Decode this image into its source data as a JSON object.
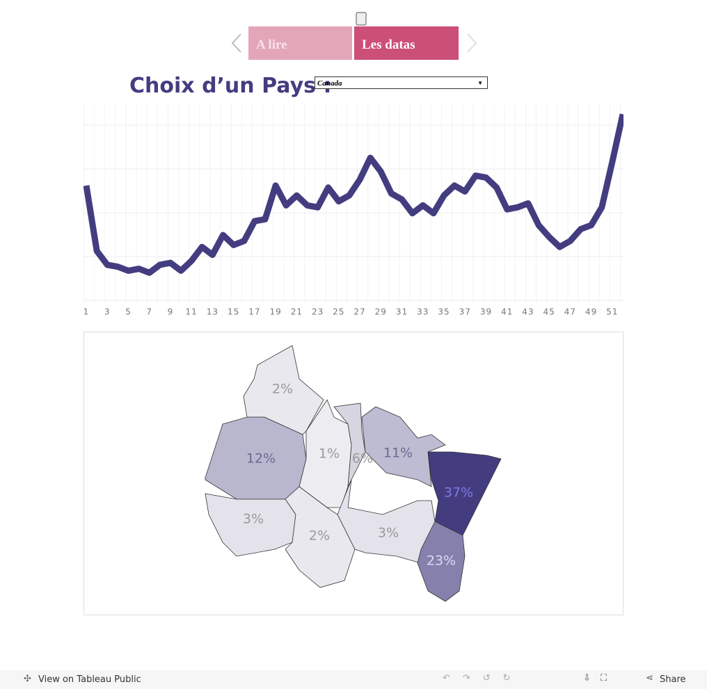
{
  "nav": {
    "tabs": [
      "A  lire",
      "Les  datas"
    ]
  },
  "filter": {
    "label": "Choix d’un Pays :",
    "selected": "Canada"
  },
  "chart_data": {
    "type": "line",
    "x": [
      1,
      2,
      3,
      4,
      5,
      6,
      7,
      8,
      9,
      10,
      11,
      12,
      13,
      14,
      15,
      16,
      17,
      18,
      19,
      20,
      21,
      22,
      23,
      24,
      25,
      26,
      27,
      28,
      29,
      30,
      31,
      32,
      33,
      34,
      35,
      36,
      37,
      38,
      39,
      40,
      41,
      42,
      43,
      44,
      45,
      46,
      47,
      48,
      49,
      50,
      51,
      52
    ],
    "values": [
      59,
      26,
      19,
      18,
      16,
      17,
      15,
      19,
      20,
      16,
      21,
      28,
      24,
      34,
      29,
      31,
      41,
      42,
      59,
      49,
      54,
      49,
      48,
      58,
      51,
      54,
      62,
      73,
      66,
      55,
      52,
      45,
      49,
      45,
      54,
      59,
      56,
      64,
      63,
      58,
      47,
      48,
      50,
      39,
      33,
      28,
      31,
      37,
      39,
      48,
      71,
      95
    ],
    "color": "#433d80",
    "xlim": [
      1,
      52
    ],
    "ylim": [
      0,
      100
    ],
    "xticks": [
      1,
      3,
      5,
      7,
      9,
      11,
      13,
      15,
      17,
      19,
      21,
      23,
      25,
      27,
      29,
      31,
      33,
      35,
      37,
      39,
      41,
      43,
      45,
      47,
      49,
      51
    ]
  },
  "map": {
    "values": [
      2,
      12,
      1,
      6,
      11,
      37,
      3,
      2,
      3,
      23
    ],
    "value_labels": [
      "2%",
      "12%",
      "1%",
      "6%",
      "11%",
      "37%",
      "3%",
      "2%",
      "3%",
      "23%"
    ]
  },
  "footer": {
    "link": "View on Tableau Public",
    "share": "Share"
  }
}
